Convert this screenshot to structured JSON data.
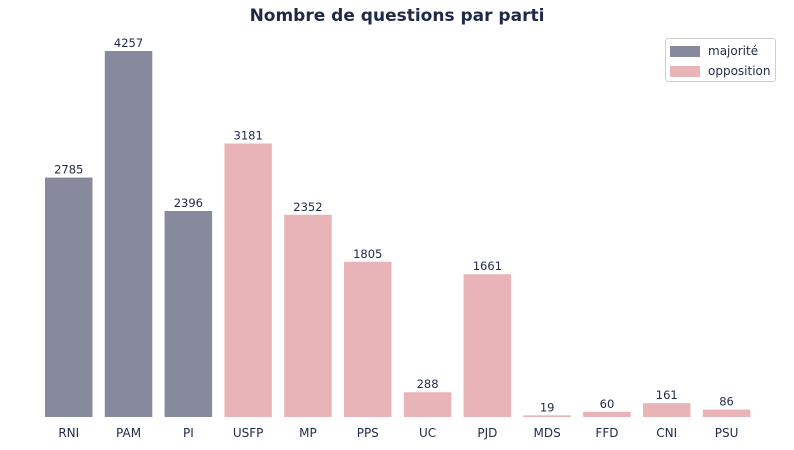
{
  "colors": {
    "majorite": "#868a9c",
    "opposition": "#e8b4b8",
    "text": "#1f2a48"
  },
  "chart_data": {
    "type": "bar",
    "title": "Nombre de questions par parti",
    "xlabel": "",
    "ylabel": "",
    "ylim": [
      0,
      4257
    ],
    "grid": false,
    "legend_position": "top-right",
    "categories": [
      "RNI",
      "PAM",
      "PI",
      "USFP",
      "MP",
      "PPS",
      "UC",
      "PJD",
      "MDS",
      "FFD",
      "CNI",
      "PSU"
    ],
    "values": [
      2785,
      4257,
      2396,
      3181,
      2352,
      1805,
      288,
      1661,
      19,
      60,
      161,
      86
    ],
    "groups": [
      "majorité",
      "majorité",
      "majorité",
      "opposition",
      "opposition",
      "opposition",
      "opposition",
      "opposition",
      "opposition",
      "opposition",
      "opposition",
      "opposition"
    ],
    "legend": [
      {
        "label": "majorité",
        "color": "#868a9c"
      },
      {
        "label": "opposition",
        "color": "#e8b4b8"
      }
    ]
  }
}
